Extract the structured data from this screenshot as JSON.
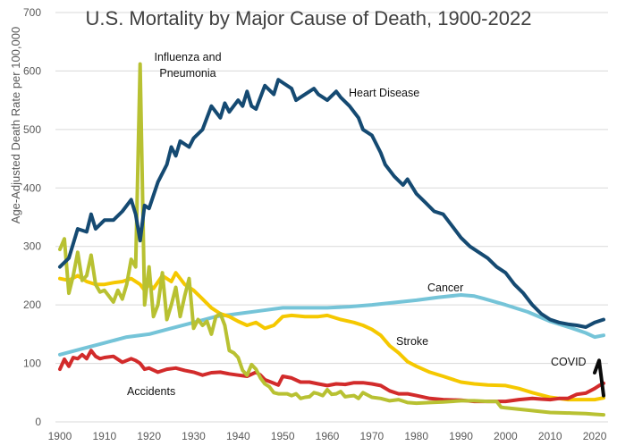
{
  "chart_data": {
    "type": "line",
    "title": "U.S. Mortality by Major Cause of Death, 1900-2022",
    "xlabel": "",
    "ylabel": "Age-Adjusted Death Rate per 100,000",
    "xlim": [
      1899,
      2023
    ],
    "ylim": [
      0,
      700
    ],
    "xticks": [
      1900,
      1910,
      1920,
      1930,
      1940,
      1950,
      1960,
      1970,
      1980,
      1990,
      2000,
      2010,
      2020
    ],
    "yticks": [
      0,
      100,
      200,
      300,
      400,
      500,
      600,
      700
    ],
    "grid": "horizontal",
    "legend": "inline labels",
    "series": [
      {
        "name": "Heart Disease",
        "label": "Heart Disease",
        "color": "#154a72",
        "points": [
          [
            1900,
            265
          ],
          [
            1902,
            280
          ],
          [
            1904,
            330
          ],
          [
            1906,
            325
          ],
          [
            1907,
            355
          ],
          [
            1908,
            330
          ],
          [
            1910,
            345
          ],
          [
            1912,
            345
          ],
          [
            1914,
            360
          ],
          [
            1916,
            380
          ],
          [
            1917,
            355
          ],
          [
            1918,
            310
          ],
          [
            1919,
            370
          ],
          [
            1920,
            365
          ],
          [
            1922,
            410
          ],
          [
            1924,
            440
          ],
          [
            1925,
            470
          ],
          [
            1926,
            455
          ],
          [
            1927,
            480
          ],
          [
            1929,
            470
          ],
          [
            1930,
            485
          ],
          [
            1932,
            500
          ],
          [
            1934,
            540
          ],
          [
            1936,
            520
          ],
          [
            1937,
            545
          ],
          [
            1938,
            530
          ],
          [
            1940,
            550
          ],
          [
            1941,
            540
          ],
          [
            1942,
            565
          ],
          [
            1943,
            540
          ],
          [
            1944,
            535
          ],
          [
            1946,
            575
          ],
          [
            1948,
            560
          ],
          [
            1949,
            585
          ],
          [
            1950,
            580
          ],
          [
            1952,
            570
          ],
          [
            1953,
            550
          ],
          [
            1955,
            560
          ],
          [
            1957,
            570
          ],
          [
            1958,
            560
          ],
          [
            1960,
            550
          ],
          [
            1962,
            565
          ],
          [
            1963,
            555
          ],
          [
            1965,
            540
          ],
          [
            1967,
            520
          ],
          [
            1968,
            500
          ],
          [
            1970,
            490
          ],
          [
            1972,
            460
          ],
          [
            1973,
            440
          ],
          [
            1975,
            420
          ],
          [
            1977,
            405
          ],
          [
            1978,
            415
          ],
          [
            1980,
            390
          ],
          [
            1982,
            375
          ],
          [
            1984,
            360
          ],
          [
            1986,
            355
          ],
          [
            1988,
            335
          ],
          [
            1990,
            315
          ],
          [
            1992,
            300
          ],
          [
            1994,
            290
          ],
          [
            1996,
            280
          ],
          [
            1998,
            265
          ],
          [
            2000,
            255
          ],
          [
            2002,
            235
          ],
          [
            2004,
            220
          ],
          [
            2006,
            200
          ],
          [
            2008,
            185
          ],
          [
            2010,
            175
          ],
          [
            2012,
            170
          ],
          [
            2014,
            167
          ],
          [
            2016,
            165
          ],
          [
            2018,
            162
          ],
          [
            2020,
            170
          ],
          [
            2022,
            175
          ]
        ]
      },
      {
        "name": "Cancer",
        "label": "Cancer",
        "color": "#75c4d8",
        "points": [
          [
            1900,
            115
          ],
          [
            1905,
            125
          ],
          [
            1910,
            135
          ],
          [
            1915,
            145
          ],
          [
            1920,
            150
          ],
          [
            1925,
            160
          ],
          [
            1930,
            170
          ],
          [
            1935,
            180
          ],
          [
            1940,
            185
          ],
          [
            1945,
            190
          ],
          [
            1950,
            195
          ],
          [
            1955,
            195
          ],
          [
            1960,
            195
          ],
          [
            1965,
            197
          ],
          [
            1970,
            200
          ],
          [
            1975,
            204
          ],
          [
            1980,
            208
          ],
          [
            1985,
            213
          ],
          [
            1990,
            217
          ],
          [
            1993,
            215
          ],
          [
            1995,
            211
          ],
          [
            2000,
            200
          ],
          [
            2005,
            188
          ],
          [
            2010,
            172
          ],
          [
            2015,
            160
          ],
          [
            2018,
            152
          ],
          [
            2020,
            145
          ],
          [
            2022,
            148
          ]
        ]
      },
      {
        "name": "Stroke",
        "label": "Stroke",
        "color": "#f5c800",
        "points": [
          [
            1900,
            245
          ],
          [
            1902,
            242
          ],
          [
            1904,
            250
          ],
          [
            1906,
            240
          ],
          [
            1908,
            235
          ],
          [
            1910,
            235
          ],
          [
            1912,
            238
          ],
          [
            1914,
            240
          ],
          [
            1916,
            245
          ],
          [
            1918,
            235
          ],
          [
            1919,
            225
          ],
          [
            1920,
            235
          ],
          [
            1921,
            228
          ],
          [
            1923,
            250
          ],
          [
            1925,
            240
          ],
          [
            1926,
            255
          ],
          [
            1928,
            235
          ],
          [
            1930,
            225
          ],
          [
            1932,
            210
          ],
          [
            1934,
            195
          ],
          [
            1936,
            185
          ],
          [
            1938,
            180
          ],
          [
            1940,
            172
          ],
          [
            1942,
            165
          ],
          [
            1944,
            170
          ],
          [
            1946,
            160
          ],
          [
            1948,
            165
          ],
          [
            1950,
            180
          ],
          [
            1952,
            182
          ],
          [
            1955,
            180
          ],
          [
            1958,
            180
          ],
          [
            1960,
            182
          ],
          [
            1963,
            175
          ],
          [
            1966,
            170
          ],
          [
            1968,
            165
          ],
          [
            1970,
            158
          ],
          [
            1972,
            148
          ],
          [
            1974,
            130
          ],
          [
            1976,
            118
          ],
          [
            1978,
            103
          ],
          [
            1980,
            95
          ],
          [
            1983,
            85
          ],
          [
            1986,
            78
          ],
          [
            1990,
            68
          ],
          [
            1993,
            65
          ],
          [
            1996,
            63
          ],
          [
            2000,
            62
          ],
          [
            2003,
            57
          ],
          [
            2006,
            50
          ],
          [
            2010,
            42
          ],
          [
            2014,
            38
          ],
          [
            2018,
            38
          ],
          [
            2020,
            38
          ],
          [
            2022,
            41
          ]
        ]
      },
      {
        "name": "Influenza and Pneumonia",
        "label": "Influenza and Pneumonia",
        "color": "#b8c132",
        "points": [
          [
            1900,
            295
          ],
          [
            1901,
            313
          ],
          [
            1902,
            220
          ],
          [
            1903,
            250
          ],
          [
            1904,
            290
          ],
          [
            1905,
            242
          ],
          [
            1906,
            250
          ],
          [
            1907,
            285
          ],
          [
            1908,
            235
          ],
          [
            1909,
            222
          ],
          [
            1910,
            225
          ],
          [
            1911,
            215
          ],
          [
            1912,
            205
          ],
          [
            1913,
            225
          ],
          [
            1914,
            210
          ],
          [
            1915,
            235
          ],
          [
            1916,
            278
          ],
          [
            1917,
            265
          ],
          [
            1918,
            612
          ],
          [
            1919,
            200
          ],
          [
            1920,
            265
          ],
          [
            1921,
            180
          ],
          [
            1922,
            200
          ],
          [
            1923,
            255
          ],
          [
            1924,
            175
          ],
          [
            1925,
            200
          ],
          [
            1926,
            230
          ],
          [
            1927,
            180
          ],
          [
            1928,
            215
          ],
          [
            1929,
            245
          ],
          [
            1930,
            160
          ],
          [
            1931,
            175
          ],
          [
            1932,
            165
          ],
          [
            1933,
            172
          ],
          [
            1934,
            150
          ],
          [
            1935,
            180
          ],
          [
            1936,
            185
          ],
          [
            1937,
            165
          ],
          [
            1938,
            122
          ],
          [
            1939,
            118
          ],
          [
            1940,
            110
          ],
          [
            1941,
            88
          ],
          [
            1942,
            80
          ],
          [
            1943,
            98
          ],
          [
            1944,
            90
          ],
          [
            1945,
            75
          ],
          [
            1946,
            65
          ],
          [
            1947,
            60
          ],
          [
            1948,
            50
          ],
          [
            1949,
            48
          ],
          [
            1950,
            48
          ],
          [
            1951,
            48
          ],
          [
            1952,
            45
          ],
          [
            1953,
            48
          ],
          [
            1954,
            40
          ],
          [
            1955,
            42
          ],
          [
            1956,
            43
          ],
          [
            1957,
            50
          ],
          [
            1958,
            48
          ],
          [
            1959,
            45
          ],
          [
            1960,
            55
          ],
          [
            1961,
            47
          ],
          [
            1962,
            48
          ],
          [
            1963,
            52
          ],
          [
            1964,
            43
          ],
          [
            1965,
            44
          ],
          [
            1966,
            45
          ],
          [
            1967,
            40
          ],
          [
            1968,
            50
          ],
          [
            1969,
            46
          ],
          [
            1970,
            42
          ],
          [
            1972,
            40
          ],
          [
            1974,
            36
          ],
          [
            1976,
            38
          ],
          [
            1978,
            33
          ],
          [
            1980,
            32
          ],
          [
            1983,
            33
          ],
          [
            1986,
            34
          ],
          [
            1990,
            36
          ],
          [
            1993,
            36
          ],
          [
            1996,
            35
          ],
          [
            1998,
            35
          ],
          [
            1999,
            25
          ],
          [
            2000,
            24
          ],
          [
            2005,
            20
          ],
          [
            2010,
            16
          ],
          [
            2015,
            15
          ],
          [
            2018,
            14
          ],
          [
            2020,
            13
          ],
          [
            2022,
            12
          ]
        ]
      },
      {
        "name": "Accidents",
        "label": "Accidents",
        "color": "#d22b2b",
        "points": [
          [
            1900,
            90
          ],
          [
            1901,
            107
          ],
          [
            1902,
            95
          ],
          [
            1903,
            110
          ],
          [
            1904,
            108
          ],
          [
            1905,
            115
          ],
          [
            1906,
            108
          ],
          [
            1907,
            122
          ],
          [
            1908,
            112
          ],
          [
            1909,
            108
          ],
          [
            1910,
            110
          ],
          [
            1912,
            112
          ],
          [
            1914,
            102
          ],
          [
            1916,
            108
          ],
          [
            1917,
            105
          ],
          [
            1918,
            100
          ],
          [
            1919,
            90
          ],
          [
            1920,
            92
          ],
          [
            1922,
            85
          ],
          [
            1924,
            90
          ],
          [
            1926,
            92
          ],
          [
            1928,
            88
          ],
          [
            1930,
            85
          ],
          [
            1932,
            80
          ],
          [
            1934,
            84
          ],
          [
            1936,
            85
          ],
          [
            1938,
            82
          ],
          [
            1940,
            80
          ],
          [
            1942,
            78
          ],
          [
            1944,
            85
          ],
          [
            1945,
            80
          ],
          [
            1946,
            72
          ],
          [
            1948,
            66
          ],
          [
            1949,
            63
          ],
          [
            1950,
            78
          ],
          [
            1952,
            75
          ],
          [
            1954,
            68
          ],
          [
            1956,
            68
          ],
          [
            1958,
            65
          ],
          [
            1960,
            62
          ],
          [
            1962,
            65
          ],
          [
            1964,
            64
          ],
          [
            1966,
            67
          ],
          [
            1968,
            67
          ],
          [
            1970,
            65
          ],
          [
            1972,
            62
          ],
          [
            1974,
            53
          ],
          [
            1976,
            48
          ],
          [
            1978,
            48
          ],
          [
            1980,
            45
          ],
          [
            1983,
            40
          ],
          [
            1986,
            38
          ],
          [
            1990,
            37
          ],
          [
            1993,
            35
          ],
          [
            1996,
            35
          ],
          [
            2000,
            35
          ],
          [
            2003,
            38
          ],
          [
            2006,
            40
          ],
          [
            2008,
            39
          ],
          [
            2010,
            38
          ],
          [
            2012,
            40
          ],
          [
            2014,
            40
          ],
          [
            2016,
            47
          ],
          [
            2018,
            49
          ],
          [
            2020,
            57
          ],
          [
            2021,
            62
          ],
          [
            2022,
            66
          ]
        ]
      },
      {
        "name": "COVID",
        "label": "COVID",
        "color": "#0a0a0a",
        "points": [
          [
            2020,
            84
          ],
          [
            2021,
            105
          ],
          [
            2022,
            45
          ]
        ]
      }
    ]
  }
}
